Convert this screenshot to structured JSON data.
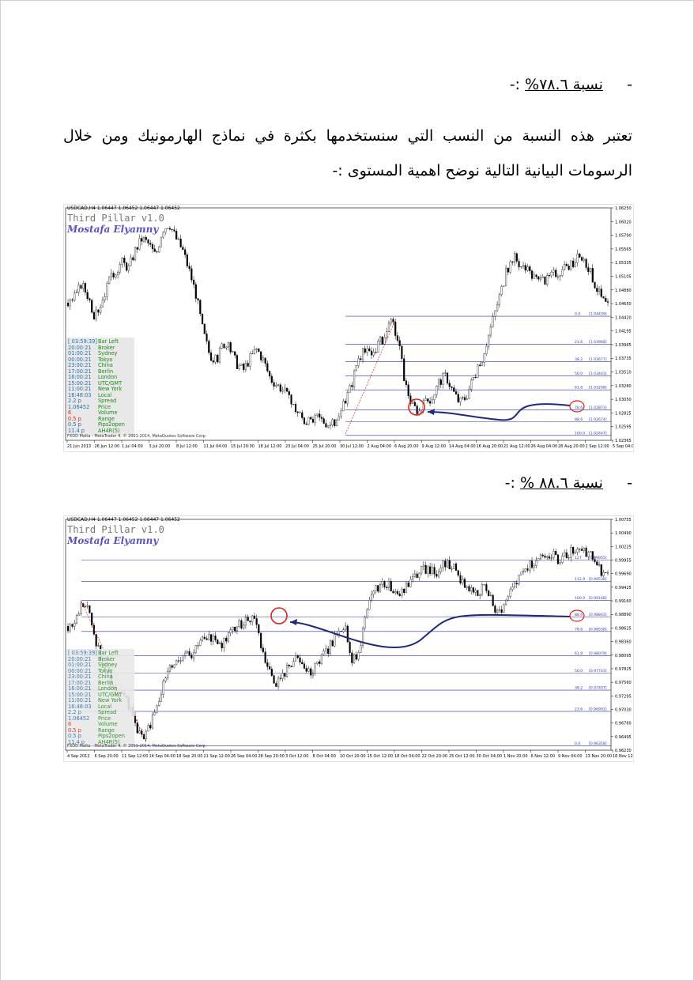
{
  "page": {
    "heading1": {
      "bullet": "-",
      "label": "نسبة ٧٨.٦%",
      "suffix": ":-"
    },
    "paragraph1": "تعتبر هذه النسبة من النسب التي سنستخدمها بكثرة في نماذج الهارمونيك ومن خلال الرسومات البيانية التالية نوضح اهمية المستوى :-",
    "heading2": {
      "bullet": "-",
      "label": "نسبة ٨٨.٦ %",
      "suffix": ":-"
    }
  },
  "colors": {
    "fib_line": "#2b2bb8",
    "arrow": "#1f2a7a",
    "circle": "#e0201a",
    "candle": "#000000",
    "trend": "#e02020"
  },
  "chart_data": [
    {
      "type": "candlestick",
      "title": "USDCAD,H4  1.06447 1.06452 1.06447 1.06452",
      "brand": "Third Pillar v1.0",
      "author": "Mostafa Elyamny",
      "price_ticks": [
        "1.06250",
        "1.06020",
        "1.05790",
        "1.05565",
        "1.05335",
        "1.05105",
        "1.04880",
        "1.04650",
        "1.04420",
        "1.04195",
        "1.03965",
        "1.03735",
        "1.03510",
        "1.03280",
        "1.03050",
        "1.02825",
        "1.02595",
        "1.02365"
      ],
      "date_ticks": [
        "21 Jun 2013",
        "26 Jun 12:00",
        "1 Jul 04:00",
        "3 Jul 20:00",
        "8 Jul 12:00",
        "11 Jul 04:00",
        "15 Jul 20:00",
        "18 Jul 12:00",
        "23 Jul 04:00",
        "25 Jul 20:00",
        "30 Jul 12:00",
        "2 Aug 04:00",
        "6 Aug 20:00",
        "9 Aug 12:00",
        "14 Aug 04:00",
        "16 Aug 20:00",
        "21 Aug 12:00",
        "26 Aug 04:00",
        "28 Aug 20:00",
        "2 Sep 12:00",
        "5 Sep 04:00"
      ],
      "ylim": [
        1.02365,
        1.0625
      ],
      "fib_levels": [
        {
          "level": "0.0",
          "price": "1.04439"
        },
        {
          "level": "23.6",
          "price": "1.03968"
        },
        {
          "level": "38.2",
          "price": "1.03677"
        },
        {
          "level": "50.0",
          "price": "1.03443"
        },
        {
          "level": "61.8",
          "price": "1.03208"
        },
        {
          "level": "78.6",
          "price": "1.02873"
        },
        {
          "level": "88.6",
          "price": "1.02674"
        },
        {
          "level": "100.0",
          "price": "1.02447"
        }
      ],
      "close_path": [
        1.0466,
        1.0475,
        1.0498,
        1.0478,
        1.0442,
        1.047,
        1.05,
        1.052,
        1.0535,
        1.0525,
        1.0556,
        1.0575,
        1.0565,
        1.0545,
        1.059,
        1.06,
        1.0575,
        1.0555,
        1.052,
        1.048,
        1.042,
        1.038,
        1.037,
        1.04,
        1.039,
        1.0365,
        1.0355,
        1.0375,
        1.039,
        1.037,
        1.034,
        1.033,
        1.032,
        1.03,
        1.0285,
        1.027,
        1.0265,
        1.0275,
        1.0268,
        1.0262,
        1.027,
        1.03,
        1.033,
        1.0375,
        1.0385,
        1.038,
        1.04,
        1.041,
        1.0435,
        1.04,
        1.033,
        1.0295,
        1.0285,
        1.03,
        1.031,
        1.0335,
        1.0345,
        1.032,
        1.03,
        1.031,
        1.034,
        1.036,
        1.04,
        1.044,
        1.048,
        1.052,
        1.0545,
        1.053,
        1.052,
        1.051,
        1.05,
        1.0505,
        1.0515,
        1.052,
        1.0525,
        1.0535,
        1.0545,
        1.053,
        1.05,
        1.0475,
        1.046
      ],
      "info_panel": [
        {
          "k": "[ 03:59:39]",
          "v": "Bar Left"
        },
        {
          "k": "20:00:21",
          "v": "Broker"
        },
        {
          "k": "01:00:21",
          "v": "Sydney"
        },
        {
          "k": "00:00:21",
          "v": "Tokyo"
        },
        {
          "k": "23:00:21",
          "v": "China"
        },
        {
          "k": "17:00:21",
          "v": "Berlin"
        },
        {
          "k": "16:00:21",
          "v": "London"
        },
        {
          "k": "15:00:21",
          "v": "UTC/GMT"
        },
        {
          "k": "11:00:21",
          "v": "New York"
        },
        {
          "k": "16:48:03",
          "v": "Local"
        },
        {
          "k": "2.2 p",
          "v": "Spread"
        },
        {
          "k": "1.06452",
          "v": "Price"
        },
        {
          "k": "6",
          "v": "Volume",
          "red": true
        },
        {
          "k": "0.5 p",
          "v": "Range",
          "red": true
        },
        {
          "k": "0.5 p",
          "v": "Pips2open"
        },
        {
          "k": "11.4 p",
          "v": "AH4R(5)"
        }
      ],
      "copyright": "FXDD Malta - MetaTrader 4, © 2001-2014, MetaQuotes Software Corp."
    },
    {
      "type": "candlestick",
      "title": "USDCAD,H4  1.06447 1.06452 1.06447 1.06452",
      "brand": "Third Pillar v1.0",
      "author": "Mostafa Elyamny",
      "price_ticks": [
        "1.00755",
        "1.00490",
        "1.00225",
        "0.99955",
        "0.99690",
        "0.99425",
        "0.99160",
        "0.98890",
        "0.98625",
        "0.98360",
        "0.98095",
        "0.97825",
        "0.97560",
        "0.97295",
        "0.97030",
        "0.96760",
        "0.96495",
        "0.96230"
      ],
      "date_ticks": [
        "4 Sep 2012",
        "6 Sep 20:00",
        "11 Sep 12:00",
        "14 Sep 04:00",
        "18 Sep 20:00",
        "21 Sep 12:00",
        "26 Sep 04:00",
        "28 Sep 20:00",
        "3 Oct 12:00",
        "8 Oct 04:00",
        "10 Oct 20:00",
        "15 Oct 12:00",
        "18 Oct 04:00",
        "22 Oct 20:00",
        "25 Oct 12:00",
        "30 Oct 04:00",
        "1 Nov 20:00",
        "6 Nov 12:00",
        "9 Nov 04:00",
        "13 Nov 20:00",
        "16 Nov 12:00"
      ],
      "ylim": [
        0.9623,
        1.00755
      ],
      "fib_levels": [
        {
          "level": "127",
          "price": "0.99955"
        },
        {
          "level": "112.9",
          "price": "0.99538"
        },
        {
          "level": "100.0",
          "price": "0.99168"
        },
        {
          "level": "88.6",
          "price": "0.98843"
        },
        {
          "level": "78.6",
          "price": "0.98558"
        },
        {
          "level": "61.8",
          "price": "0.98079"
        },
        {
          "level": "50.0",
          "price": "0.97743"
        },
        {
          "level": "38.2",
          "price": "0.97407"
        },
        {
          "level": "23.6",
          "price": "0.96991"
        },
        {
          "level": "0.0",
          "price": "0.96318"
        }
      ],
      "close_path": [
        0.9866,
        0.9872,
        0.991,
        0.9895,
        0.984,
        0.979,
        0.977,
        0.973,
        0.9745,
        0.97,
        0.9665,
        0.964,
        0.968,
        0.972,
        0.976,
        0.979,
        0.98,
        0.982,
        0.981,
        0.984,
        0.9835,
        0.985,
        0.9825,
        0.9845,
        0.986,
        0.987,
        0.988,
        0.9885,
        0.982,
        0.978,
        0.9755,
        0.9765,
        0.979,
        0.98,
        0.9785,
        0.977,
        0.979,
        0.981,
        0.983,
        0.986,
        0.987,
        0.979,
        0.982,
        0.988,
        0.993,
        0.9945,
        0.995,
        0.9935,
        0.9925,
        0.9945,
        0.996,
        0.9975,
        0.998,
        0.997,
        0.9985,
        0.999,
        0.9975,
        0.995,
        0.994,
        0.993,
        0.9945,
        0.992,
        0.989,
        0.9905,
        0.9935,
        0.9955,
        0.9975,
        0.999,
        1.0,
        1.001,
        1.0005,
        0.9995,
        1.0005,
        1.0015,
        1.002,
        1.001,
        0.9995,
        0.9975,
        0.997
      ],
      "info_panel": [
        {
          "k": "[ 03:59:39]",
          "v": "Bar Left"
        },
        {
          "k": "20:00:21",
          "v": "Broker"
        },
        {
          "k": "01:00:21",
          "v": "Sydney"
        },
        {
          "k": "00:00:21",
          "v": "Tokyo"
        },
        {
          "k": "23:00:21",
          "v": "China"
        },
        {
          "k": "17:00:21",
          "v": "Berlin"
        },
        {
          "k": "16:00:21",
          "v": "London"
        },
        {
          "k": "15:00:21",
          "v": "UTC/GMT"
        },
        {
          "k": "11:00:21",
          "v": "New York"
        },
        {
          "k": "16:48:03",
          "v": "Local"
        },
        {
          "k": "2.2 p",
          "v": "Spread"
        },
        {
          "k": "1.06452",
          "v": "Price"
        },
        {
          "k": "6",
          "v": "Volume",
          "red": true
        },
        {
          "k": "0.5 p",
          "v": "Range",
          "red": true
        },
        {
          "k": "0.5 p",
          "v": "Pips2open"
        },
        {
          "k": "11.4 p",
          "v": "AH4R(5)"
        }
      ],
      "copyright": "FXDD Malta - MetaTrader 4, © 2001-2014, MetaQuotes Software Corp."
    }
  ]
}
